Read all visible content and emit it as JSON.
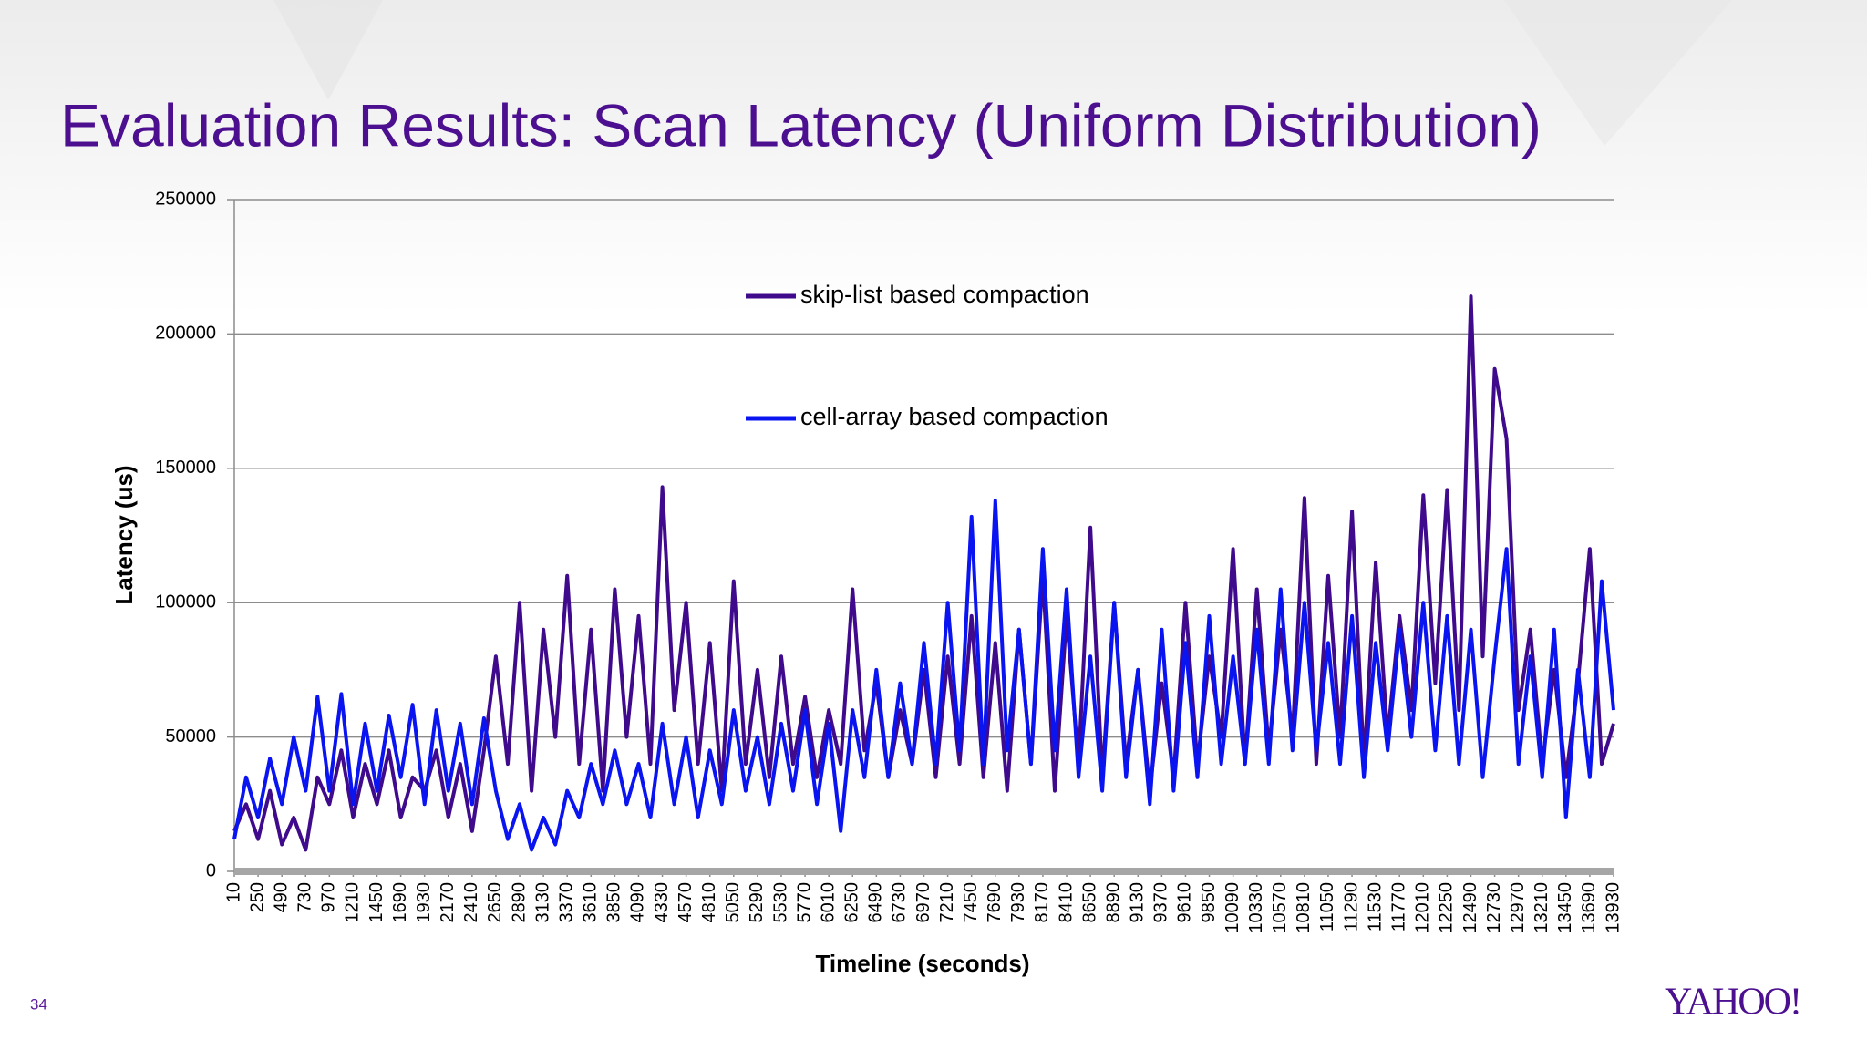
{
  "slide": {
    "page_number": "34",
    "logo": "YAHOO!"
  },
  "chart_data": {
    "type": "line",
    "title": "Evaluation Results: Scan Latency (Uniform Distribution)",
    "x_label": "Timeline (seconds)",
    "y_label": "Latency (us)",
    "legend": "upper center",
    "grid": true,
    "xlim": [
      10,
      13930
    ],
    "ylim": [
      0,
      250000
    ],
    "yticks": [
      0,
      50000,
      100000,
      150000,
      200000,
      250000
    ],
    "xticks": [
      10,
      250,
      490,
      730,
      970,
      1210,
      1450,
      1690,
      1930,
      2170,
      2410,
      2650,
      2890,
      3130,
      3370,
      3610,
      3850,
      4090,
      4330,
      4570,
      4810,
      5050,
      5290,
      5530,
      5770,
      6010,
      6250,
      6490,
      6730,
      6970,
      7210,
      7450,
      7690,
      7930,
      8170,
      8410,
      8650,
      8890,
      9130,
      9370,
      9610,
      9850,
      10090,
      10330,
      10570,
      10810,
      11050,
      11290,
      11530,
      11770,
      12010,
      12250,
      12490,
      12730,
      12970,
      13210,
      13450,
      13690,
      13930
    ],
    "x": [
      10,
      130,
      250,
      370,
      490,
      610,
      730,
      850,
      970,
      1090,
      1210,
      1330,
      1450,
      1570,
      1690,
      1810,
      1930,
      2050,
      2170,
      2290,
      2410,
      2530,
      2650,
      2770,
      2890,
      3010,
      3130,
      3250,
      3370,
      3490,
      3610,
      3730,
      3850,
      3970,
      4090,
      4210,
      4330,
      4450,
      4570,
      4690,
      4810,
      4930,
      5050,
      5170,
      5290,
      5410,
      5530,
      5650,
      5770,
      5890,
      6010,
      6130,
      6250,
      6370,
      6490,
      6610,
      6730,
      6850,
      6970,
      7090,
      7210,
      7330,
      7450,
      7570,
      7690,
      7810,
      7930,
      8050,
      8170,
      8290,
      8410,
      8530,
      8650,
      8770,
      8890,
      9010,
      9130,
      9250,
      9370,
      9490,
      9610,
      9730,
      9850,
      9970,
      10090,
      10210,
      10330,
      10450,
      10570,
      10690,
      10810,
      10930,
      11050,
      11170,
      11290,
      11410,
      11530,
      11650,
      11770,
      11890,
      12010,
      12130,
      12250,
      12370,
      12490,
      12610,
      12730,
      12850,
      12970,
      13090,
      13210,
      13330,
      13450,
      13570,
      13690,
      13810,
      13930
    ],
    "series": [
      {
        "name": "skip-list based compaction",
        "color": "#3f0a8c",
        "values": [
          15000,
          25000,
          12000,
          30000,
          10000,
          20000,
          8000,
          35000,
          25000,
          45000,
          20000,
          40000,
          25000,
          45000,
          20000,
          35000,
          30000,
          45000,
          20000,
          40000,
          15000,
          45000,
          80000,
          40000,
          100000,
          30000,
          90000,
          50000,
          110000,
          40000,
          90000,
          30000,
          105000,
          50000,
          95000,
          40000,
          143000,
          60000,
          100000,
          40000,
          85000,
          30000,
          108000,
          40000,
          75000,
          35000,
          80000,
          40000,
          65000,
          35000,
          60000,
          40000,
          105000,
          45000,
          70000,
          35000,
          60000,
          40000,
          75000,
          35000,
          80000,
          40000,
          95000,
          35000,
          85000,
          30000,
          90000,
          40000,
          110000,
          30000,
          95000,
          40000,
          128000,
          35000,
          100000,
          40000,
          75000,
          30000,
          70000,
          35000,
          100000,
          40000,
          80000,
          50000,
          120000,
          40000,
          105000,
          45000,
          90000,
          50000,
          139000,
          40000,
          110000,
          50000,
          134000,
          40000,
          115000,
          50000,
          95000,
          60000,
          140000,
          70000,
          142000,
          60000,
          214000,
          80000,
          187000,
          161000,
          60000,
          90000,
          40000,
          75000,
          35000,
          70000,
          120000,
          40000,
          55000
        ]
      },
      {
        "name": "cell-array based compaction",
        "color": "#0a14f0",
        "values": [
          12000,
          35000,
          20000,
          42000,
          25000,
          50000,
          30000,
          65000,
          30000,
          66000,
          25000,
          55000,
          30000,
          58000,
          35000,
          62000,
          25000,
          60000,
          30000,
          55000,
          25000,
          57000,
          30000,
          12000,
          25000,
          8000,
          20000,
          10000,
          30000,
          20000,
          40000,
          25000,
          45000,
          25000,
          40000,
          20000,
          55000,
          25000,
          50000,
          20000,
          45000,
          25000,
          60000,
          30000,
          50000,
          25000,
          55000,
          30000,
          60000,
          25000,
          55000,
          15000,
          60000,
          35000,
          75000,
          35000,
          70000,
          40000,
          85000,
          40000,
          100000,
          45000,
          132000,
          40000,
          138000,
          45000,
          90000,
          40000,
          120000,
          45000,
          105000,
          35000,
          80000,
          30000,
          100000,
          35000,
          75000,
          25000,
          90000,
          30000,
          85000,
          35000,
          95000,
          40000,
          80000,
          40000,
          90000,
          40000,
          105000,
          45000,
          100000,
          45000,
          85000,
          40000,
          95000,
          35000,
          85000,
          45000,
          90000,
          50000,
          100000,
          45000,
          95000,
          40000,
          90000,
          35000,
          80000,
          120000,
          40000,
          80000,
          35000,
          90000,
          20000,
          75000,
          35000,
          108000,
          60000
        ]
      }
    ]
  }
}
